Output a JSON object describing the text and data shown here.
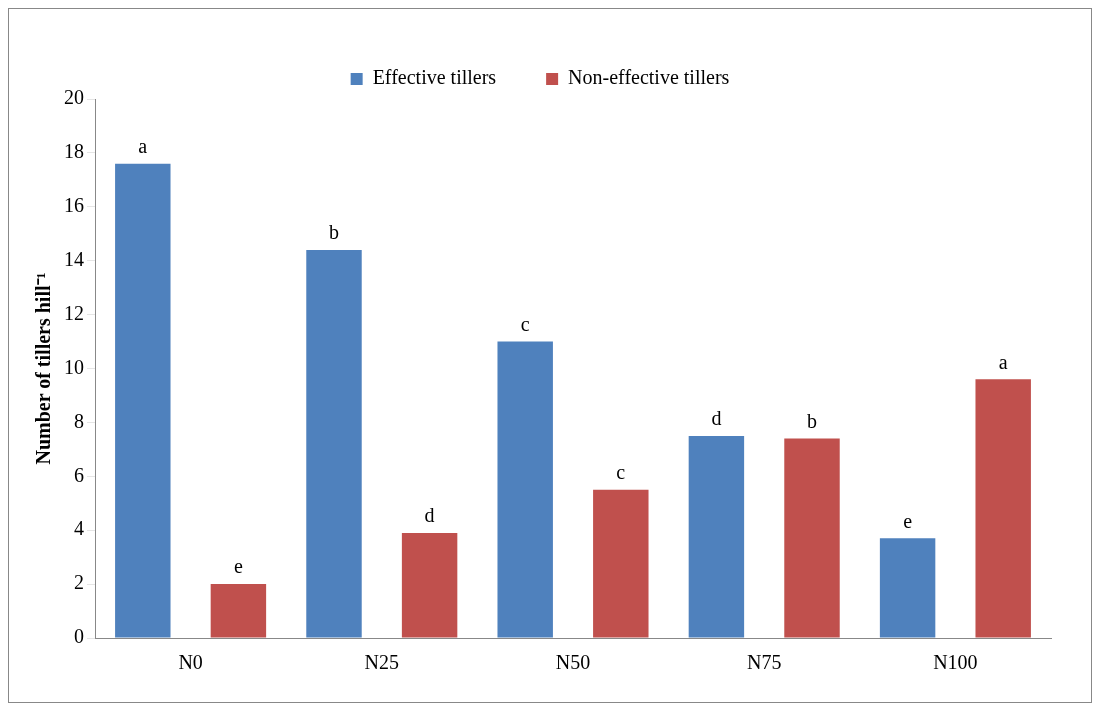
{
  "chart_data": {
    "type": "bar",
    "ylabel": "Number of tillers hill⁻¹",
    "categories": [
      "N0",
      "N25",
      "N50",
      "N75",
      "N100"
    ],
    "series": [
      {
        "name": "Effective tillers",
        "color": "#4f81bd",
        "values": [
          17.6,
          14.4,
          11.0,
          7.5,
          3.7
        ],
        "value_labels": [
          "a",
          "b",
          "c",
          "d",
          "e"
        ]
      },
      {
        "name": "Non-effective tillers",
        "color": "#c0504d",
        "values": [
          2.0,
          3.9,
          5.5,
          7.4,
          9.6
        ],
        "value_labels": [
          "e",
          "d",
          "c",
          "b",
          "a"
        ]
      }
    ],
    "ylim": [
      0,
      20
    ],
    "yticks": [
      0,
      2,
      4,
      6,
      8,
      10,
      12,
      14,
      16,
      18,
      20
    ],
    "grid": false,
    "legend": "top"
  }
}
